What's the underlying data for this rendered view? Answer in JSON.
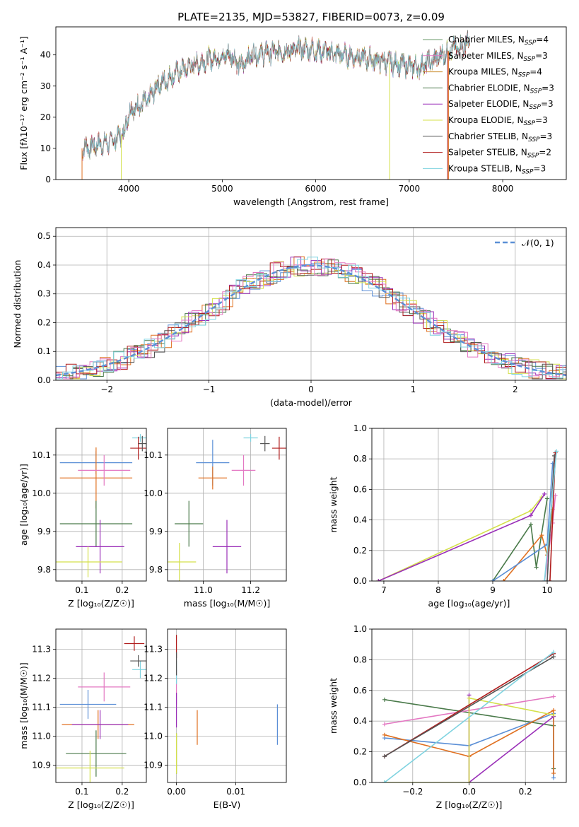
{
  "figure_title": "PLATE=2135, MJD=53827, FIBERID=0073, z=0.09",
  "colors": [
    "#6a9a6a",
    "#e377c2",
    "#c98b2d",
    "#4a7a4a",
    "#9a2fb8",
    "#d4e04a",
    "#555555",
    "#b01c1c",
    "#7fd3e0"
  ],
  "chart_data": [
    {
      "id": "spectrum",
      "type": "line",
      "xlabel": "wavelength [Angstrom, rest frame]",
      "ylabel": "Flux [fλ10⁻¹⁷ erg cm⁻² s⁻¹ A⁻¹]",
      "xlim": [
        3220,
        8680
      ],
      "ylim": [
        0,
        49
      ],
      "xticks": [
        4000,
        5000,
        6000,
        7000,
        8000
      ],
      "yticks": [
        0,
        10,
        20,
        30,
        40
      ],
      "grid": false,
      "legend_position": "top-right",
      "x_range_data": [
        3500,
        7650
      ],
      "continuum": [
        [
          3500,
          10
        ],
        [
          3800,
          12
        ],
        [
          3950,
          15
        ],
        [
          4000,
          22
        ],
        [
          4200,
          25
        ],
        [
          4300,
          30
        ],
        [
          4500,
          34
        ],
        [
          4700,
          37
        ],
        [
          4900,
          39
        ],
        [
          5100,
          40
        ],
        [
          5200,
          36
        ],
        [
          5300,
          40
        ],
        [
          5600,
          41
        ],
        [
          5900,
          42
        ],
        [
          6100,
          41
        ],
        [
          6300,
          40
        ],
        [
          6500,
          39
        ],
        [
          6700,
          38
        ],
        [
          6900,
          37
        ],
        [
          7100,
          36
        ],
        [
          7300,
          39
        ],
        [
          7400,
          41
        ],
        [
          7650,
          44
        ]
      ],
      "series": [
        {
          "name": "Chabrier MILES, N_SSP=4",
          "label_main": "Chabrier MILES, N",
          "label_sub": "SSP",
          "label_tail": "=4",
          "color": "#6a9a6a"
        },
        {
          "name": "Salpeter MILES, N_SSP=3",
          "label_main": "Salpeter MILES, N",
          "label_sub": "SSP",
          "label_tail": "=3",
          "color": "#e377c2"
        },
        {
          "name": "Kroupa MILES, N_SSP=4",
          "label_main": "Kroupa MILES, N",
          "label_sub": "SSP",
          "label_tail": "=4",
          "color": "#c98b2d"
        },
        {
          "name": "Chabrier ELODIE, N_SSP=3",
          "label_main": "Chabrier ELODIE, N",
          "label_sub": "SSP",
          "label_tail": "=3",
          "color": "#4a7a4a"
        },
        {
          "name": "Salpeter ELODIE, N_SSP=3",
          "label_main": "Salpeter ELODIE, N",
          "label_sub": "SSP",
          "label_tail": "=3",
          "color": "#9a2fb8"
        },
        {
          "name": "Kroupa ELODIE, N_SSP=3",
          "label_main": "Kroupa ELODIE, N",
          "label_sub": "SSP",
          "label_tail": "=3",
          "color": "#d4e04a"
        },
        {
          "name": "Chabrier STELIB, N_SSP=3",
          "label_main": "Chabrier STELIB, N",
          "label_sub": "SSP",
          "label_tail": "=3",
          "color": "#555555"
        },
        {
          "name": "Salpeter STELIB, N_SSP=2",
          "label_main": "Salpeter STELIB, N",
          "label_sub": "SSP",
          "label_tail": "=2",
          "color": "#b01c1c"
        },
        {
          "name": "Kroupa STELIB, N_SSP=3",
          "label_main": "Kroupa STELIB, N",
          "label_sub": "SSP",
          "label_tail": "=3",
          "color": "#7fd3e0"
        }
      ]
    },
    {
      "id": "histogram",
      "type": "bar",
      "xlabel": "(data-model)/error",
      "ylabel": "Normed distribution",
      "xlim": [
        -2.5,
        2.5
      ],
      "ylim": [
        0,
        0.53
      ],
      "xticks": [
        -2,
        -1,
        0,
        1,
        2
      ],
      "yticks": [
        0,
        0.1,
        0.2,
        0.3,
        0.4,
        0.5
      ],
      "grid": true,
      "legend_position": "top-right",
      "reference_label": "𝒩(0, 1)",
      "reference_color": "#5b8fd6",
      "bin_width": 0.1,
      "colors": [
        "#5b8fd6",
        "#e07020",
        "#4a7a4a",
        "#9a2fb8",
        "#d4e04a",
        "#555555",
        "#b01c1c",
        "#e377c2",
        "#7fd3e0"
      ]
    },
    {
      "id": "age_vs_Z",
      "type": "scatter",
      "xlabel": "Z [log₁₀(Z/Z☉)]",
      "ylabel": "age  [log₁₀(age/yr)]",
      "xlim": [
        0.035,
        0.26
      ],
      "ylim": [
        9.77,
        10.17
      ],
      "xticks": [
        0.1,
        0.2
      ],
      "yticks": [
        9.8,
        9.9,
        10.0,
        10.1
      ],
      "grid": true,
      "points": [
        {
          "x": 0.135,
          "y": 10.08,
          "xerr": 0.09,
          "yerr": 0.03,
          "color": "#5b8fd6"
        },
        {
          "x": 0.135,
          "y": 10.04,
          "xerr": 0.09,
          "yerr": 0.08,
          "color": "#e07020"
        },
        {
          "x": 0.155,
          "y": 10.06,
          "xerr": 0.065,
          "yerr": 0.04,
          "color": "#e377c2"
        },
        {
          "x": 0.135,
          "y": 9.92,
          "xerr": 0.09,
          "yerr": 0.06,
          "color": "#4a7a4a"
        },
        {
          "x": 0.145,
          "y": 9.86,
          "xerr": 0.06,
          "yerr": 0.07,
          "color": "#9a2fb8"
        },
        {
          "x": 0.115,
          "y": 9.82,
          "xerr": 0.085,
          "yerr": 0.04,
          "color": "#d4e04a"
        },
        {
          "x": 0.245,
          "y": 10.145,
          "xerr": 0.02,
          "yerr": 0.01,
          "color": "#7fd3e0"
        },
        {
          "x": 0.24,
          "y": 10.118,
          "xerr": 0.02,
          "yerr": 0.03,
          "color": "#b01c1c"
        },
        {
          "x": 0.25,
          "y": 10.13,
          "xerr": 0.01,
          "yerr": 0.02,
          "color": "#555555"
        }
      ]
    },
    {
      "id": "age_vs_mass",
      "type": "scatter",
      "xlabel": "mass [log₁₀(M/M☉)]",
      "ylabel": "",
      "xlim": [
        10.85,
        11.35
      ],
      "ylim": [
        9.77,
        10.17
      ],
      "xticks": [
        11.0,
        11.2
      ],
      "yticks": [
        9.8,
        9.9,
        10.0,
        10.1
      ],
      "grid": true,
      "points": [
        {
          "x": 11.04,
          "y": 10.08,
          "xerr": 0.07,
          "yerr": 0.06,
          "color": "#5b8fd6"
        },
        {
          "x": 11.04,
          "y": 10.04,
          "xerr": 0.06,
          "yerr": 0.03,
          "color": "#e07020"
        },
        {
          "x": 11.17,
          "y": 10.06,
          "xerr": 0.05,
          "yerr": 0.04,
          "color": "#e377c2"
        },
        {
          "x": 10.94,
          "y": 9.92,
          "xerr": 0.06,
          "yerr": 0.06,
          "color": "#4a7a4a"
        },
        {
          "x": 11.1,
          "y": 9.86,
          "xerr": 0.06,
          "yerr": 0.07,
          "color": "#9a2fb8"
        },
        {
          "x": 10.9,
          "y": 9.82,
          "xerr": 0.07,
          "yerr": 0.05,
          "color": "#d4e04a"
        },
        {
          "x": 11.2,
          "y": 10.145,
          "xerr": 0.03,
          "yerr": 0.01,
          "color": "#7fd3e0"
        },
        {
          "x": 11.32,
          "y": 10.118,
          "xerr": 0.03,
          "yerr": 0.03,
          "color": "#b01c1c"
        },
        {
          "x": 11.26,
          "y": 10.13,
          "xerr": 0.02,
          "yerr": 0.02,
          "color": "#555555"
        }
      ]
    },
    {
      "id": "weight_vs_age",
      "type": "line",
      "xlabel": "age  [log₁₀(age/yr)]",
      "ylabel": "mass weight",
      "xlim": [
        6.78,
        10.35
      ],
      "ylim": [
        0,
        1.0
      ],
      "xticks": [
        7,
        8,
        9,
        10
      ],
      "yticks": [
        0,
        0.2,
        0.4,
        0.6,
        0.8,
        1.0
      ],
      "grid": true,
      "series": [
        {
          "color": "#d4e04a",
          "points": [
            [
              6.9,
              0
            ],
            [
              9.7,
              0.46
            ],
            [
              9.9,
              0.55
            ]
          ]
        },
        {
          "color": "#9a2fb8",
          "points": [
            [
              6.9,
              0
            ],
            [
              9.7,
              0.43
            ],
            [
              9.95,
              0.57
            ]
          ]
        },
        {
          "color": "#4a7a4a",
          "points": [
            [
              9.0,
              0
            ],
            [
              9.7,
              0.37
            ],
            [
              9.8,
              0.09
            ],
            [
              10.0,
              0.54
            ]
          ]
        },
        {
          "color": "#e07020",
          "points": [
            [
              9.2,
              0
            ],
            [
              9.9,
              0.3
            ],
            [
              10.0,
              0.17
            ],
            [
              10.1,
              0.47
            ]
          ]
        },
        {
          "color": "#5b8fd6",
          "points": [
            [
              9.0,
              0
            ],
            [
              10.0,
              0.24
            ],
            [
              10.1,
              0.77
            ]
          ]
        },
        {
          "color": "#e377c2",
          "points": [
            [
              9.95,
              0
            ],
            [
              10.1,
              0.38
            ],
            [
              10.15,
              0.56
            ]
          ]
        },
        {
          "color": "#b01c1c",
          "points": [
            [
              10.05,
              0
            ],
            [
              10.15,
              0.84
            ]
          ]
        },
        {
          "color": "#555555",
          "points": [
            [
              10.0,
              0
            ],
            [
              10.13,
              0.82
            ]
          ]
        },
        {
          "color": "#7fd3e0",
          "points": [
            [
              9.95,
              0
            ],
            [
              10.17,
              0.85
            ]
          ]
        }
      ]
    },
    {
      "id": "mass_vs_Z",
      "type": "scatter",
      "xlabel": "Z [log₁₀(Z/Z☉)]",
      "ylabel": "mass [log₁₀(M/M☉)]",
      "xlim": [
        0.035,
        0.26
      ],
      "ylim": [
        10.84,
        11.37
      ],
      "xticks": [
        0.1,
        0.2
      ],
      "yticks": [
        10.9,
        11.0,
        11.1,
        11.2,
        11.3
      ],
      "grid": true,
      "points": [
        {
          "x": 0.115,
          "y": 11.11,
          "xerr": 0.07,
          "yerr": 0.05,
          "color": "#5b8fd6"
        },
        {
          "x": 0.14,
          "y": 11.04,
          "xerr": 0.09,
          "yerr": 0.05,
          "color": "#e07020"
        },
        {
          "x": 0.155,
          "y": 11.17,
          "xerr": 0.065,
          "yerr": 0.05,
          "color": "#e377c2"
        },
        {
          "x": 0.135,
          "y": 10.94,
          "xerr": 0.075,
          "yerr": 0.08,
          "color": "#4a7a4a"
        },
        {
          "x": 0.145,
          "y": 11.04,
          "xerr": 0.07,
          "yerr": 0.05,
          "color": "#9a2fb8"
        },
        {
          "x": 0.12,
          "y": 10.89,
          "xerr": 0.085,
          "yerr": 0.06,
          "color": "#d4e04a"
        },
        {
          "x": 0.245,
          "y": 11.23,
          "xerr": 0.02,
          "yerr": 0.03,
          "color": "#7fd3e0"
        },
        {
          "x": 0.23,
          "y": 11.32,
          "xerr": 0.025,
          "yerr": 0.025,
          "color": "#b01c1c"
        },
        {
          "x": 0.24,
          "y": 11.26,
          "xerr": 0.02,
          "yerr": 0.02,
          "color": "#555555"
        }
      ]
    },
    {
      "id": "mass_vs_ebv",
      "type": "scatter",
      "xlabel": "E(B-V)",
      "ylabel": "",
      "xlim": [
        -0.0015,
        0.0185
      ],
      "ylim": [
        10.84,
        11.37
      ],
      "xticks": [
        0.0,
        0.01
      ],
      "xtick_labels": [
        "0.00",
        "0.01"
      ],
      "yticks": [
        10.9,
        11.0,
        11.1,
        11.2,
        11.3
      ],
      "grid": true,
      "points": [
        {
          "x": 0.017,
          "y": 11.04,
          "yerr": 0.07,
          "color": "#5b8fd6"
        },
        {
          "x": 0.0035,
          "y": 11.03,
          "yerr": 0.06,
          "color": "#e07020"
        },
        {
          "x": 0.0,
          "y": 11.17,
          "yerr": 0.06,
          "color": "#e377c2"
        },
        {
          "x": 0.0,
          "y": 10.94,
          "yerr": 0.07,
          "color": "#4a7a4a"
        },
        {
          "x": 0.0,
          "y": 11.09,
          "yerr": 0.06,
          "color": "#9a2fb8"
        },
        {
          "x": 0.0,
          "y": 10.94,
          "yerr": 0.07,
          "color": "#d4e04a"
        },
        {
          "x": 0.0,
          "y": 11.22,
          "yerr": 0.04,
          "color": "#7fd3e0"
        },
        {
          "x": 0.0,
          "y": 11.31,
          "yerr": 0.04,
          "color": "#b01c1c"
        },
        {
          "x": 0.0,
          "y": 11.25,
          "yerr": 0.04,
          "color": "#555555"
        }
      ]
    },
    {
      "id": "weight_vs_Z",
      "type": "line",
      "xlabel": "Z [log₁₀(Z/Z☉)]",
      "ylabel": "mass weight",
      "xlim": [
        -0.345,
        0.345
      ],
      "ylim": [
        0,
        1.0
      ],
      "xticks": [
        -0.2,
        0.0,
        0.2
      ],
      "yticks": [
        0,
        0.2,
        0.4,
        0.6,
        0.8,
        1.0
      ],
      "grid": true,
      "series": [
        {
          "color": "#4a7a4a",
          "points": [
            [
              -0.3,
              0.54
            ],
            [
              0.3,
              0.37
            ],
            [
              0.3,
              0.09
            ]
          ]
        },
        {
          "color": "#5b8fd6",
          "points": [
            [
              -0.3,
              0.29
            ],
            [
              0.0,
              0.24
            ],
            [
              0.3,
              0.45
            ],
            [
              0.3,
              0.03
            ]
          ]
        },
        {
          "color": "#e07020",
          "points": [
            [
              -0.3,
              0.31
            ],
            [
              0.0,
              0.17
            ],
            [
              0.3,
              0.47
            ],
            [
              0.3,
              0.06
            ]
          ]
        },
        {
          "color": "#e377c2",
          "points": [
            [
              -0.3,
              0.38
            ],
            [
              0.3,
              0.56
            ]
          ]
        },
        {
          "color": "#9a2fb8",
          "points": [
            [
              0.0,
              0.57
            ],
            [
              0.0,
              0.0
            ],
            [
              0.3,
              0.43
            ]
          ]
        },
        {
          "color": "#d4e04a",
          "points": [
            [
              -0.3,
              0.0
            ],
            [
              0.0,
              0.0
            ],
            [
              0.0,
              0.55
            ],
            [
              0.3,
              0.44
            ]
          ]
        },
        {
          "color": "#b01c1c",
          "points": [
            [
              -0.3,
              0.17
            ],
            [
              0.3,
              0.84
            ]
          ]
        },
        {
          "color": "#555555",
          "points": [
            [
              -0.3,
              0.17
            ],
            [
              0.3,
              0.82
            ]
          ]
        },
        {
          "color": "#7fd3e0",
          "points": [
            [
              -0.3,
              0.0
            ],
            [
              -0.3,
              0.0
            ],
            [
              0.3,
              0.85
            ]
          ]
        }
      ]
    }
  ]
}
